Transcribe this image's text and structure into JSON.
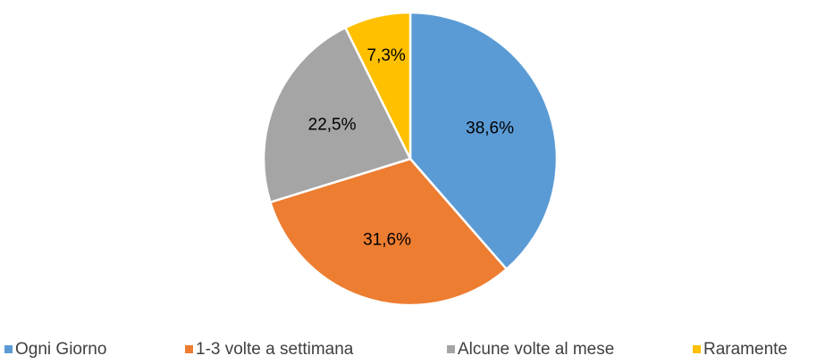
{
  "chart_data": {
    "type": "pie",
    "categories": [
      "Ogni Giorno",
      "1-3 volte a settimana",
      "Alcune volte al mese",
      "Raramente"
    ],
    "values": [
      38.6,
      31.6,
      22.5,
      7.3
    ],
    "value_labels": [
      "38,6%",
      "31,6%",
      "22,5%",
      "7,3%"
    ],
    "colors": [
      "#5b9bd5",
      "#ed7d31",
      "#a5a5a5",
      "#ffc000"
    ],
    "legend": "bottom"
  }
}
